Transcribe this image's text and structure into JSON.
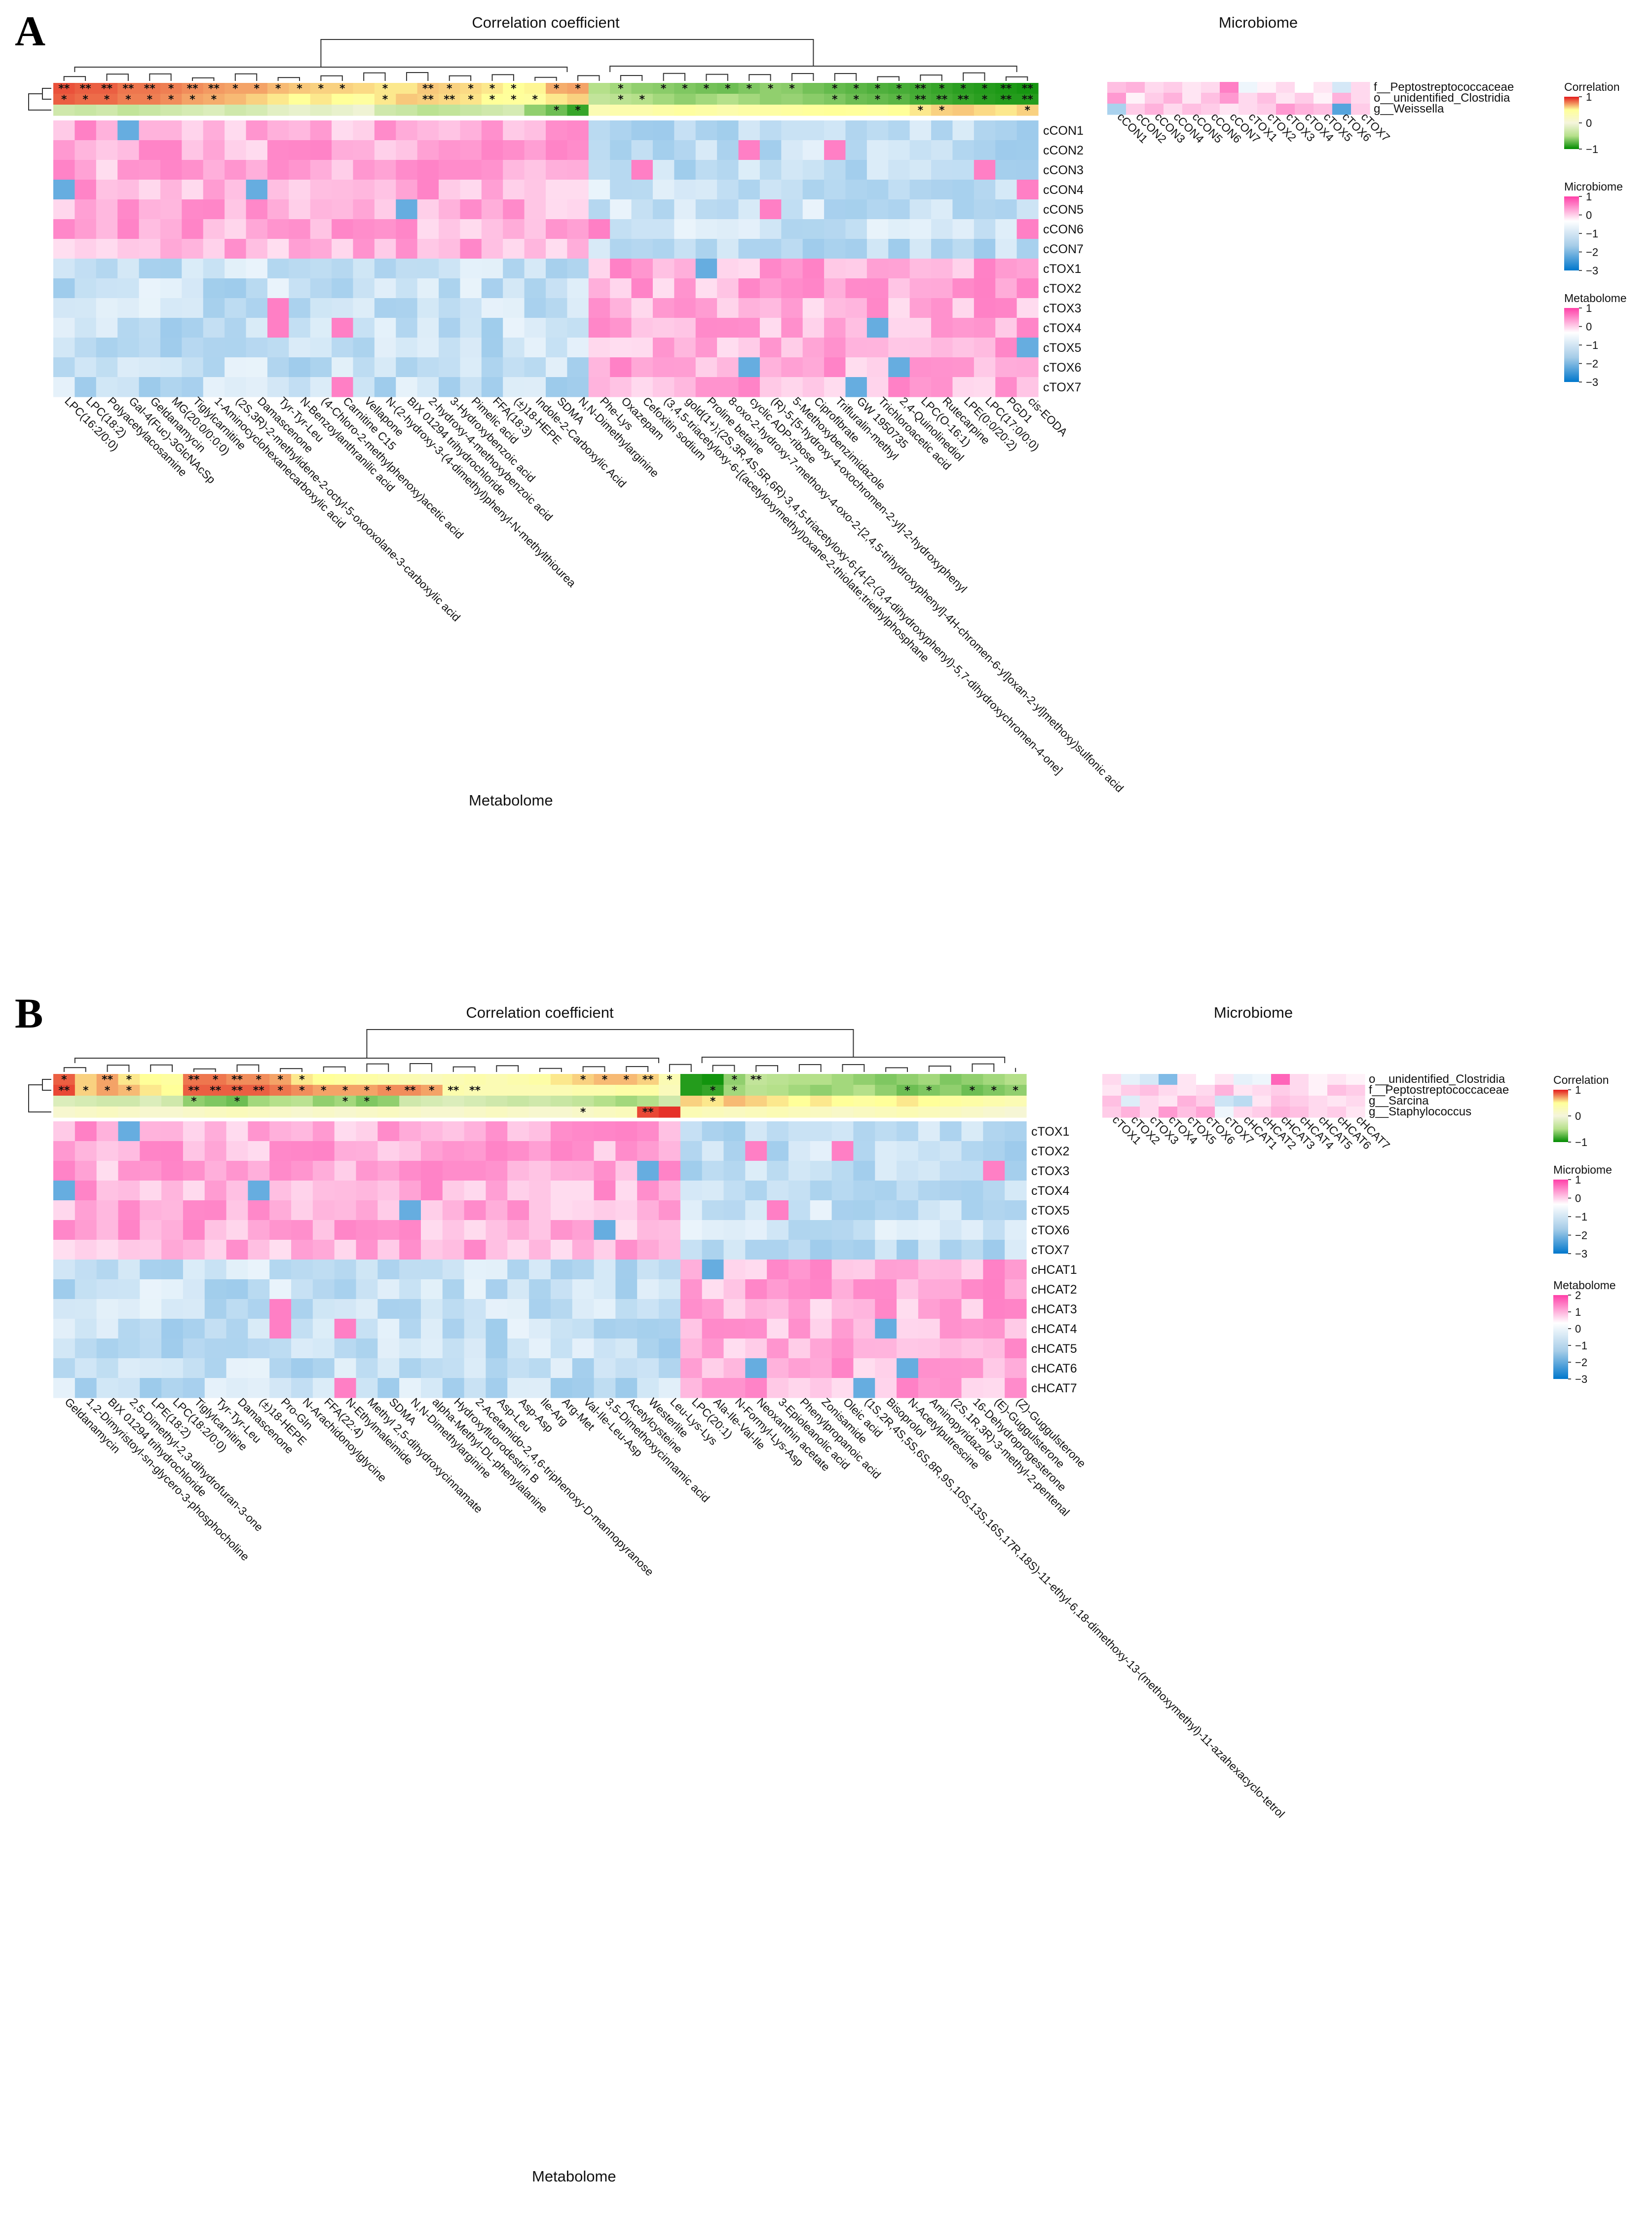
{
  "colors": {
    "corr_pos": "#e31a1c",
    "corr_mid": "#ffff99",
    "corr_zero": "#f5f5dc",
    "corr_neg": "#008b00",
    "abund_high": "#ff3fa8",
    "abund_mid": "#ffffff",
    "abund_low": "#0077cc"
  },
  "chart_data": [
    {
      "type": "heatmap",
      "panel": "A",
      "title": "Correlation coefficient",
      "side_title": "Microbiome",
      "xlabel": "Metabolome",
      "microbes": [
        "f__Peptostreptococcaceae",
        "o__unidentified_Clostridia",
        "g__Weissella"
      ],
      "samples": [
        "cCON1",
        "cCON2",
        "cCON3",
        "cCON4",
        "cCON5",
        "cCON6",
        "cCON7",
        "cTOX1",
        "cTOX2",
        "cTOX3",
        "cTOX4",
        "cTOX5",
        "cTOX6",
        "cTOX7"
      ],
      "metabolites": [
        "LPC(16:2/0:0)",
        "LPC(18:2)",
        "Polyacetylacosamine",
        "Gal-4(Fuc)-3GlcNAcSp",
        "Geldanamycin",
        "MG(20:0/0:0:0)",
        "Tiglylcarnitine",
        "1-Aminocyclohexanecarboxylic acid",
        "(2S,3R)-2-methylidene-2-octyl-5-oxooxolane-3-carboxylic acid",
        "Damascenone",
        "Tyr-Tyr-Leu",
        "N-Benzoylanthranilic acid",
        "(4-Chloro-2-methylphenoxy)acetic acid",
        "Carnitine C15",
        "Vellapone",
        "N-(2-hydroxy-3-(4-dimethyl)phenyl-N-methylthiourea",
        "BIX 01294 trihydrochloride",
        "2-hydroxy-4-methoxybenzoic acid",
        "3-Hydroxybenzoic acid",
        "Pimelic acid",
        "FFA(18:3)",
        "(±)18-HEPE",
        "Indole-2-Carboxylic Acid",
        "SDMA",
        "N,N-Dimethylarginine",
        "Phe-Lys",
        "Oxazepam",
        "Cefoxitin sodium",
        "(3,4,5-triacetyloxy-6-[(acetyloxymethyl)oxane-2-thiolate;triethylphosphane",
        "gold(1+);(2S,3R,4S,5R,6R)-3,4,5-triacetyloxy-6-[4-[2-(3,4-dihydroxyphenyl)-5,7-dihydroxychromen-4-one]",
        "Proline betaine",
        "8-oxo-2-hydroxy-7-methoxy-4-oxo-2-[2,4,5-trihydroxyphenyl]-4H-chromen-6-yl]oxan-2-yl]methoxy)sulfonic acid",
        "cyclic ADP-ribose",
        "(R)-5-[5-hydroxy-4-oxochromen-2-yl]-2-hydroxyphenyl",
        "5-Methoxybenzimidazole",
        "Ciprofibrate",
        "Trifluralin-methyl",
        "GW 1950735",
        "Trichloroacetic acid",
        "2,4-Quinolinediol",
        "LPC(O-16:1)",
        "Rutecarpine",
        "LPE(0:0/20:2)",
        "LPC(17:0/0:0)",
        "PGD1",
        "cis-EODA"
      ],
      "corr_rows": [
        [
          0.88,
          0.85,
          0.85,
          0.8,
          0.8,
          0.78,
          0.75,
          0.72,
          0.7,
          0.7,
          0.65,
          0.62,
          0.6,
          0.6,
          0.58,
          0.55,
          0.55,
          0.62,
          0.6,
          0.58,
          0.55,
          0.5,
          0.52,
          0.68,
          0.7,
          -0.5,
          -0.55,
          -0.6,
          -0.62,
          -0.65,
          -0.68,
          -0.7,
          -0.65,
          -0.6,
          -0.62,
          -0.68,
          -0.72,
          -0.75,
          -0.78,
          -0.8,
          -0.82,
          -0.85,
          -0.88,
          -0.9,
          -0.92,
          -0.94
        ],
        [
          0.85,
          0.82,
          0.82,
          0.78,
          0.78,
          0.75,
          0.7,
          0.68,
          0.65,
          0.6,
          0.55,
          0.5,
          0.55,
          0.5,
          0.45,
          0.55,
          0.62,
          0.6,
          0.58,
          0.56,
          0.5,
          0.48,
          0.45,
          0.55,
          0.6,
          -0.4,
          -0.45,
          -0.5,
          -0.55,
          -0.6,
          -0.55,
          -0.5,
          -0.55,
          -0.6,
          -0.58,
          -0.62,
          -0.65,
          -0.7,
          -0.72,
          -0.75,
          -0.8,
          -0.82,
          -0.85,
          -0.88,
          -0.9,
          -0.9
        ],
        [
          -0.3,
          -0.35,
          -0.3,
          -0.4,
          -0.35,
          -0.3,
          -0.25,
          -0.2,
          -0.3,
          -0.25,
          -0.15,
          -0.1,
          -0.15,
          -0.1,
          -0.05,
          -0.3,
          -0.35,
          -0.45,
          -0.4,
          -0.35,
          -0.3,
          -0.25,
          -0.6,
          -0.7,
          -0.85,
          0.3,
          0.35,
          0.35,
          0.4,
          0.45,
          0.4,
          0.35,
          0.4,
          0.42,
          0.45,
          0.48,
          0.5,
          0.48,
          0.45,
          0.5,
          0.55,
          0.6,
          0.62,
          0.58,
          0.55,
          0.6
        ]
      ],
      "stars": [
        "**|**|**|**|**|*|**|**|*|*|*|*|*|*| |*| |**|*|*|*|*| |*|*| |*| |*|*|*|*|*|*|*| |*|*|*|*|**|*|*|*|**|**",
        "*|*|*|*|*|*|*|*| | | | | | | |*| |**|**|*|*|*|*| | | |*|*| | | | | | | | |*|*|*|*|**|**|**|*|**|**",
        " | | | | | | | | | | | | | | | | | | | | | | |*|*| | | | | | | | | | | | | | | |*|*| | | |*"
      ],
      "microbe_abund": [
        [
          0.5,
          0.6,
          0.3,
          0.4,
          0.2,
          0.3,
          1.0,
          -0.2,
          0.1,
          0.3,
          0.0,
          0.2,
          -0.5,
          0.3
        ],
        [
          0.8,
          0.1,
          0.4,
          0.6,
          0.2,
          0.5,
          0.8,
          0.3,
          0.5,
          0.2,
          0.4,
          0.1,
          0.6,
          0.3
        ],
        [
          -1.0,
          0.4,
          0.6,
          0.3,
          0.5,
          0.4,
          0.2,
          0.3,
          0.4,
          0.8,
          0.6,
          0.5,
          -2.0,
          0.4
        ]
      ],
      "legend": [
        {
          "title": "Correlation",
          "ticks": [
            "1",
            "0",
            "−1"
          ]
        },
        {
          "title": "Microbiome",
          "ticks": [
            "1",
            "0",
            "−1",
            "−2",
            "−3"
          ]
        },
        {
          "title": "Metabolome",
          "ticks": [
            "1",
            "0",
            "−1",
            "−2",
            "−3"
          ]
        }
      ]
    },
    {
      "type": "heatmap",
      "panel": "B",
      "title": "Correlation coefficient",
      "side_title": "Microbiome",
      "xlabel": "Metabolome",
      "microbes": [
        "o__unidentified_Clostridia",
        "f__Peptostreptococcaceae",
        "g__Sarcina",
        "g__Staphylococcus"
      ],
      "samples": [
        "cTOX1",
        "cTOX2",
        "cTOX3",
        "cTOX4",
        "cTOX5",
        "cTOX6",
        "cTOX7",
        "cHCAT1",
        "cHCAT2",
        "cHCAT3",
        "cHCAT4",
        "cHCAT5",
        "cHCAT6",
        "cHCAT7"
      ],
      "metabolites": [
        "Geldanamycin",
        "1,2-Dimyristoyl-sn-glycero-3-phosphocholine",
        "BIX 01294 trihydrochloride",
        "2,5-Dimethyl-2,3-dihydrofuran-3-one",
        "LPE(18:2)",
        "LPC(18:2/0:0)",
        "Tiglylcarnitine",
        "Tyr-Tyr-Leu",
        "Damascenone",
        "(±)18-HEPE",
        "Pro-Gln",
        "N-Arachidonoylglycine",
        "FFA(22:4)",
        "N-Ethylmaleimide",
        "Methyl 2,5-dihydroxycinnamate",
        "SDMA",
        "N,N-Dimethylarginine",
        "alpha-Methyl-DL-phenylalanine",
        "Hydroxyfluorodestrin B",
        "2-Acetamido-2,4,6-triphenoxy-D-mannopyranose",
        "Asp-Leu",
        "Asp-Asp",
        "Ile-Arg",
        "Arg-Met",
        "Val-Ile-Leu-Asp",
        "3,5-Dimethoxycinnamic acid",
        "Acetylcysteine",
        "Westerlite",
        "Leu-Lys-Lys",
        "LPC(20:1)",
        "Ala-Ile-Val-Ile",
        "N-Formyl-Lys-Asp",
        "Neoxanthin acetate",
        "3-Epioleanolic acid",
        "Phenylpropanoic acid",
        "Zonisamide",
        "Oleic acid",
        "(1S,2R,4S,5S,6S,8R,9S,10S,13S,16S,17R,18S)-11-ethyl-6,18-dimethoxy-13-(methoxymethyl)-11-azahexacyclo-tetrol",
        "Bisoprolol",
        "N-Acetylputrescine",
        "Aminopyridazole",
        "(2S,1R,3R)-3-methyl-2-pentenal",
        "16-Dehydroprogesterone",
        "(E)-Guggulsterone",
        "(Z)-Guggulsterone"
      ],
      "corr_rows": [
        [
          0.85,
          0.6,
          0.7,
          0.55,
          0.5,
          0.45,
          0.8,
          0.8,
          0.75,
          0.75,
          0.7,
          0.55,
          0.5,
          0.45,
          0.4,
          0.35,
          0.3,
          0.25,
          0.3,
          0.35,
          0.3,
          0.35,
          0.4,
          0.55,
          0.6,
          0.65,
          0.65,
          0.6,
          0.3,
          -0.9,
          -0.95,
          -0.6,
          -0.4,
          -0.45,
          -0.5,
          -0.5,
          -0.55,
          -0.6,
          -0.65,
          -0.6,
          -0.55,
          -0.65,
          -0.6,
          -0.55,
          -0.5
        ],
        [
          0.9,
          0.6,
          0.7,
          0.65,
          0.55,
          0.5,
          0.85,
          0.85,
          0.85,
          0.85,
          0.8,
          0.75,
          0.7,
          0.7,
          0.7,
          0.75,
          0.75,
          0.7,
          0.35,
          0.3,
          0.3,
          0.3,
          0.3,
          0.3,
          0.35,
          0.35,
          0.4,
          0.4,
          0.25,
          -0.9,
          -0.85,
          -0.55,
          -0.45,
          -0.5,
          -0.55,
          -0.6,
          -0.55,
          -0.5,
          -0.6,
          -0.7,
          -0.65,
          -0.6,
          -0.7,
          -0.65,
          -0.6
        ],
        [
          -0.2,
          -0.25,
          -0.3,
          -0.3,
          -0.2,
          -0.3,
          -0.6,
          -0.65,
          -0.7,
          -0.55,
          -0.5,
          -0.45,
          -0.6,
          -0.55,
          -0.65,
          -0.6,
          -0.3,
          -0.25,
          -0.2,
          -0.25,
          -0.3,
          -0.35,
          -0.3,
          -0.35,
          -0.4,
          -0.5,
          -0.55,
          -0.5,
          -0.3,
          0.6,
          0.55,
          0.65,
          0.6,
          0.55,
          0.5,
          0.55,
          0.5,
          0.45,
          0.5,
          0.55,
          0.5,
          0.45,
          0.4,
          0.35,
          0.3
        ],
        [
          0.1,
          0.15,
          0.2,
          0.15,
          0.1,
          0.1,
          0.15,
          0.2,
          0.25,
          0.2,
          0.15,
          0.1,
          0.15,
          0.1,
          0.15,
          0.2,
          0.15,
          0.1,
          0.1,
          0.15,
          0.2,
          0.15,
          0.1,
          0.1,
          0.15,
          0.2,
          0.25,
          0.9,
          0.95,
          0.3,
          0.25,
          0.2,
          0.25,
          0.3,
          0.25,
          0.2,
          0.15,
          0.2,
          0.25,
          0.3,
          0.25,
          0.2,
          0.15,
          0.1,
          0.05
        ]
      ],
      "stars": [
        "*| |**|*| | |**|*|**|*|*|*| | | | | | | | | | | | |*|*|*|**|*| | |*|**| | | | | | | | | | | | |",
        "**|*|*|*| | |**|**|**|**|*|*|*|*|*|*|**|*|**|**| | | | | | | | | | |*|*| | | | | | | |*|*| |*|*|*",
        " | | | | | |*| |*| | | | |*|*| | | | | | | | | | | | | | | |*| | | | | | | | | | | | | |",
        " | | | | | | | | | | | | | | | | | | | | | | | |*| | |**| | | | | | | | | | | | | | | |"
      ],
      "microbe_abund": [
        [
          0.3,
          -0.3,
          -0.5,
          -1.5,
          0.2,
          0.0,
          0.2,
          -0.3,
          -0.2,
          1.2,
          0.3,
          0.1,
          0.2,
          0.1
        ],
        [
          0.2,
          0.4,
          0.5,
          0.3,
          0.2,
          0.3,
          0.6,
          0.2,
          0.3,
          0.4,
          0.3,
          0.1,
          0.5,
          0.4
        ],
        [
          0.5,
          -0.4,
          0.3,
          0.2,
          0.6,
          0.4,
          -0.6,
          -0.8,
          0.2,
          0.5,
          0.4,
          0.3,
          0.2,
          0.3
        ],
        [
          0.4,
          0.6,
          0.3,
          0.8,
          0.5,
          0.7,
          -0.2,
          0.3,
          0.4,
          0.6,
          0.5,
          0.3,
          0.4,
          0.2
        ]
      ],
      "legend": [
        {
          "title": "Correlation",
          "ticks": [
            "1",
            "0",
            "−1"
          ]
        },
        {
          "title": "Microbiome",
          "ticks": [
            "1",
            "0",
            "−1",
            "−2",
            "−3"
          ]
        },
        {
          "title": "Metabolome",
          "ticks": [
            "2",
            "1",
            "0",
            "−1",
            "−2",
            "−3"
          ]
        }
      ]
    }
  ]
}
